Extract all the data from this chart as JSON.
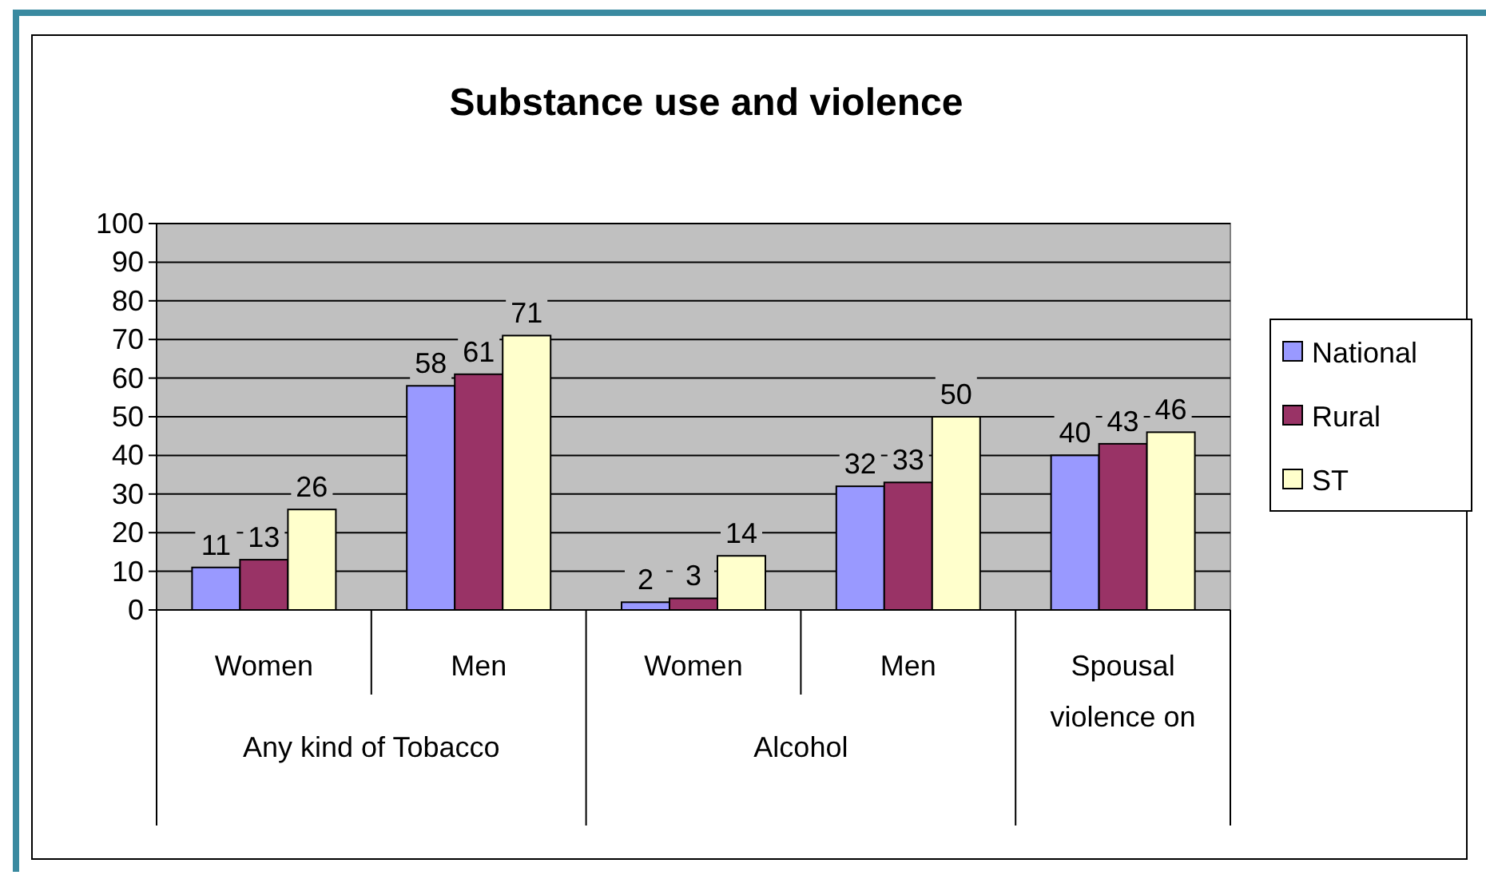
{
  "chart_data": {
    "type": "bar",
    "title": "Substance use and violence",
    "categories": [
      "Women",
      "Men",
      "Women",
      "Men",
      "Spousal violence on"
    ],
    "annotations": [
      "Any kind of Tobacco",
      "Alcohol"
    ],
    "series": [
      {
        "name": "National",
        "color": "#9999ff",
        "values": [
          11,
          58,
          2,
          32,
          40
        ]
      },
      {
        "name": "Rural",
        "color": "#993366",
        "values": [
          13,
          61,
          3,
          33,
          43
        ]
      },
      {
        "name": "ST",
        "color": "#ffffcc",
        "values": [
          26,
          71,
          14,
          50,
          46
        ]
      }
    ],
    "ylim": [
      0,
      100
    ],
    "yticks": [
      0,
      10,
      20,
      30,
      40,
      50,
      60,
      70,
      80,
      90,
      100
    ],
    "grid": "y",
    "legend": "right",
    "data_labels": true
  }
}
